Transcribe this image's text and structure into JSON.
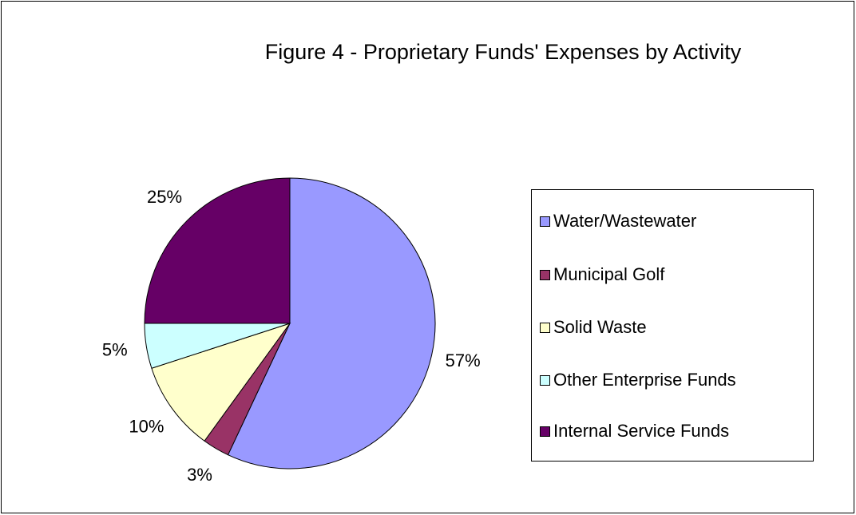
{
  "chart_data": {
    "type": "pie",
    "title": "Figure 4 - Proprietary Funds' Expenses by Activity",
    "categories": [
      "Water/Wastewater",
      "Municipal Golf",
      "Solid Waste",
      "Other Enterprise Funds",
      "Internal Service Funds"
    ],
    "values": [
      57,
      3,
      10,
      5,
      25
    ],
    "value_labels": [
      "57%",
      "3%",
      "10%",
      "5%",
      "25%"
    ],
    "colors": [
      "#9999ff",
      "#993366",
      "#ffffcc",
      "#ccffff",
      "#660066"
    ],
    "legend": "right"
  }
}
